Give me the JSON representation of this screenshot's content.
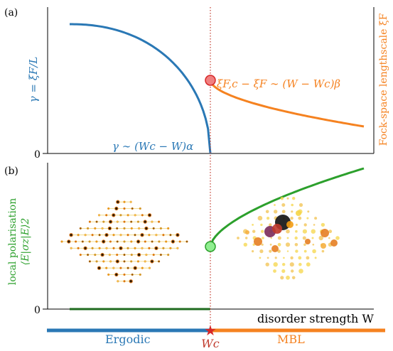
{
  "panel_a": {
    "label": "(a)",
    "left_axis_label": "γ = ξF/L",
    "right_axis_label": "Fock-space lengthscale ξF",
    "zero_label": "0",
    "gamma_annotation": "γ ∼ (Wc − W)α",
    "xi_annotation": "ξF,c − ξF ∼ (W − Wc)β"
  },
  "panel_b": {
    "label": "(b)",
    "left_axis_label_line1": "local polarisation",
    "left_axis_label_line2": "⟨E|σz|E⟩2",
    "zero_label": "0",
    "x_axis_label": "disorder strength W"
  },
  "phase_bar": {
    "left_label": "Ergodic",
    "right_label": "MBL",
    "critical_label": "Wc",
    "colors": {
      "ergodic": "#2a78b5",
      "mbl": "#f58220"
    }
  },
  "colors": {
    "blue": "#2a78b5",
    "orange": "#f58220",
    "green": "#2ca02c",
    "critical_marker": "#f07070",
    "critical_line": "#c0392b",
    "star": "#d62728"
  },
  "gamma_exponent": "α",
  "xi_exponent": "β"
}
